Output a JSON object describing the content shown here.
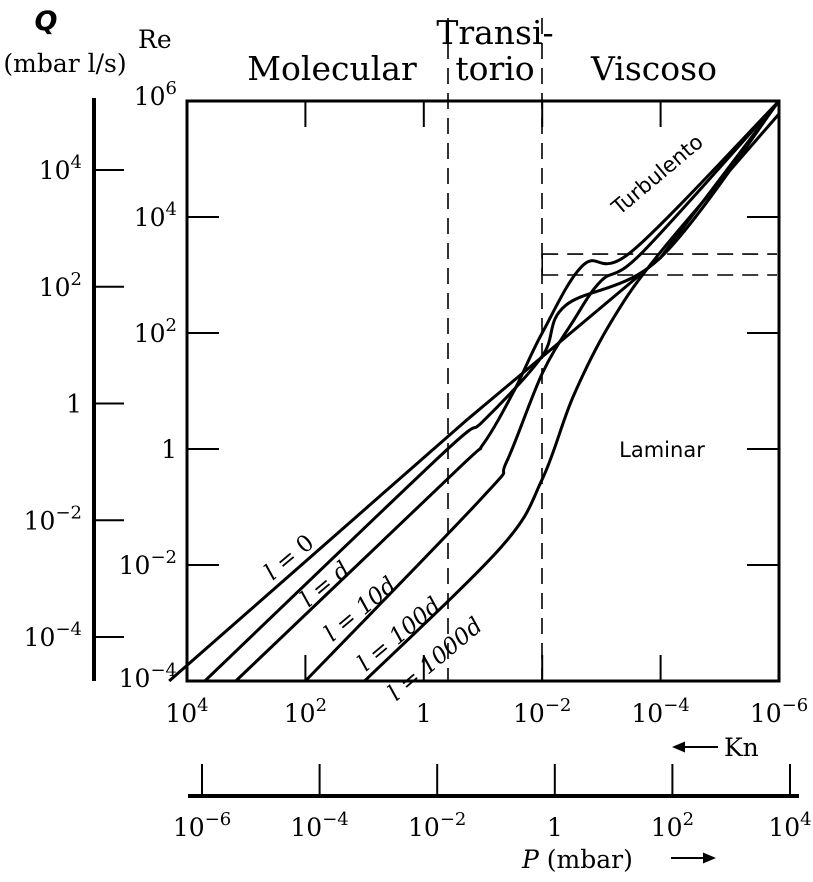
{
  "chart_data": {
    "type": "line",
    "scale": "log-log",
    "axes": {
      "x_kn": {
        "label": "Kn",
        "ticks": [
          {
            "value": 10000,
            "label_base": "10",
            "label_exp": "4"
          },
          {
            "value": 100,
            "label_base": "10",
            "label_exp": "2"
          },
          {
            "value": 1,
            "label_base": "1",
            "label_exp": ""
          },
          {
            "value": 0.01,
            "label_base": "10",
            "label_exp": "−2"
          },
          {
            "value": 0.0001,
            "label_base": "10",
            "label_exp": "−4"
          },
          {
            "value": 1e-06,
            "label_base": "10",
            "label_exp": "−6"
          }
        ]
      },
      "x_pressure": {
        "label": "P  (mbar)",
        "ticks": [
          {
            "value": 1e-06,
            "label_base": "10",
            "label_exp": "−6"
          },
          {
            "value": 0.0001,
            "label_base": "10",
            "label_exp": "−4"
          },
          {
            "value": 0.01,
            "label_base": "10",
            "label_exp": "−2"
          },
          {
            "value": 1,
            "label_base": "1",
            "label_exp": ""
          },
          {
            "value": 100,
            "label_base": "10",
            "label_exp": "2"
          },
          {
            "value": 10000,
            "label_base": "10",
            "label_exp": "4"
          }
        ]
      },
      "y_re": {
        "label": "Re",
        "ticks": [
          {
            "value": 1000000,
            "label_base": "10",
            "label_exp": "6"
          },
          {
            "value": 10000,
            "label_base": "10",
            "label_exp": "4"
          },
          {
            "value": 100,
            "label_base": "10",
            "label_exp": "2"
          },
          {
            "value": 1,
            "label_base": "1",
            "label_exp": ""
          },
          {
            "value": 0.01,
            "label_base": "10",
            "label_exp": "−2"
          },
          {
            "value": 0.0001,
            "label_base": "10",
            "label_exp": "−4"
          }
        ]
      },
      "y_q": {
        "label_symbol": "Q",
        "label_unit": "(mbar l/s)",
        "ticks": [
          {
            "value": 10000,
            "label_base": "10",
            "label_exp": "4"
          },
          {
            "value": 100,
            "label_base": "10",
            "label_exp": "2"
          },
          {
            "value": 1,
            "label_base": "1",
            "label_exp": ""
          },
          {
            "value": 0.01,
            "label_base": "10",
            "label_exp": "−2"
          },
          {
            "value": 0.0001,
            "label_base": "10",
            "label_exp": "−4"
          }
        ]
      }
    },
    "regions": [
      {
        "label": "Molecular"
      },
      {
        "label_line1": "Transi-",
        "label_line2": "torio"
      },
      {
        "label": "Viscoso"
      }
    ],
    "region_boundaries_kn": [
      0.5,
      0.01
    ],
    "transition_re_band": [
      1000,
      2300
    ],
    "annotations": {
      "turbulent": "Turbulento",
      "laminar": "Laminar"
    },
    "series": [
      {
        "name": "l = 0",
        "label_prefix": "l",
        "label_value": "0",
        "points": [
          [
            20000,
            0.0001
          ],
          [
            0.2,
            3
          ],
          [
            0.0001,
            2000
          ],
          [
            1e-06,
            1000000
          ]
        ]
      },
      {
        "name": "l = d",
        "label_prefix": "l",
        "label_value": "d",
        "points": [
          [
            5000,
            0.0001
          ],
          [
            0.5,
            0.8
          ],
          [
            0.1,
            3
          ],
          [
            0.01,
            40
          ],
          [
            0.004,
            300
          ],
          [
            0.0001,
            2000
          ],
          [
            1e-06,
            1000000
          ]
        ]
      },
      {
        "name": "l = 10d",
        "label_prefix": "l",
        "label_value": "10d",
        "points": [
          [
            1500,
            0.0001
          ],
          [
            0.3,
            0.4
          ],
          [
            0.1,
            1.2
          ],
          [
            0.03,
            10
          ],
          [
            0.01,
            100
          ],
          [
            0.002,
            1500
          ],
          [
            0.0003,
            2600
          ],
          [
            1e-06,
            1000000
          ]
        ]
      },
      {
        "name": "l = 100d",
        "label_prefix": "l",
        "label_value": "100d",
        "points": [
          [
            100,
            0.0001
          ],
          [
            0.1,
            0.15
          ],
          [
            0.04,
            0.6
          ],
          [
            0.01,
            20
          ],
          [
            0.003,
            160
          ],
          [
            0.001,
            800
          ],
          [
            0.0002,
            2500
          ],
          [
            1e-06,
            1000000
          ]
        ]
      },
      {
        "name": "l = 1000d",
        "label_prefix": "l",
        "label_value": "1000d",
        "points": [
          [
            10,
            0.0001
          ],
          [
            0.05,
            0.02
          ],
          [
            0.01,
            0.3
          ],
          [
            0.003,
            8
          ],
          [
            0.0007,
            150
          ],
          [
            0.0001,
            2500
          ],
          [
            1e-06,
            600000
          ]
        ]
      }
    ]
  }
}
